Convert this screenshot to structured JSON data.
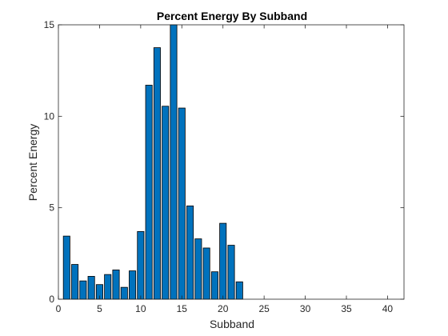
{
  "chart_data": {
    "type": "bar",
    "title": "Percent Energy By Subband",
    "xlabel": "Subband",
    "ylabel": "Percent Energy",
    "x": [
      1,
      2,
      3,
      4,
      5,
      6,
      7,
      8,
      9,
      10,
      11,
      12,
      13,
      14,
      15,
      16,
      17,
      18,
      19,
      20,
      21,
      22
    ],
    "values": [
      3.45,
      1.9,
      1.0,
      1.25,
      0.8,
      1.35,
      1.6,
      0.65,
      1.55,
      3.7,
      11.7,
      13.75,
      10.55,
      15.0,
      10.45,
      5.1,
      3.3,
      2.8,
      1.5,
      4.15,
      2.95,
      0.95
    ],
    "xlim": [
      0,
      42
    ],
    "ylim": [
      0,
      15
    ],
    "xticks": [
      0,
      5,
      10,
      15,
      20,
      25,
      30,
      35,
      40
    ],
    "yticks": [
      0,
      5,
      10,
      15
    ],
    "grid": false,
    "bar_color": "#0072BD",
    "edge_color": "#000000"
  }
}
